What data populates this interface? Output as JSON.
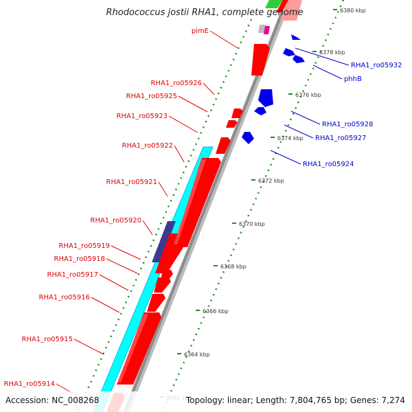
{
  "title": "Rhodococcus jostii RHA1, complete genome",
  "footer": {
    "accession": "Accession: NC_008268",
    "summary": "Topology: linear; Length: 7,804,765 bp; Genes: 7,274"
  },
  "colors": {
    "forward_gene": "#ff0000",
    "reverse_gene": "#0000ee",
    "cyan_feature": "#00ffff",
    "dark_feature": "#3b3b8f",
    "tick_green": "#1e8a1e",
    "backbone": "#9a9a9a"
  },
  "scale": {
    "unit": "kbp",
    "labels": [
      "6362 kbp",
      "6364 kbp",
      "6366 kbp",
      "6368 kbp",
      "6370 kbp",
      "6372 kbp",
      "6374 kbp",
      "6376 kbp",
      "6378 kbp",
      "6380 kbp"
    ]
  },
  "forward_labels": [
    "pimE",
    "RHA1_ro05926",
    "RHA1_ro05925",
    "RHA1_ro05923",
    "RHA1_ro05922",
    "RHA1_ro05921",
    "RHA1_ro05920",
    "RHA1_ro05919",
    "RHA1_ro05918",
    "RHA1_ro05917",
    "RHA1_ro05916",
    "RHA1_ro05915",
    "RHA1_ro05914"
  ],
  "reverse_labels": [
    "RHA1_ro05932",
    "phhB",
    "RHA1_ro05928",
    "RHA1_ro05927",
    "RHA1_ro05924"
  ]
}
